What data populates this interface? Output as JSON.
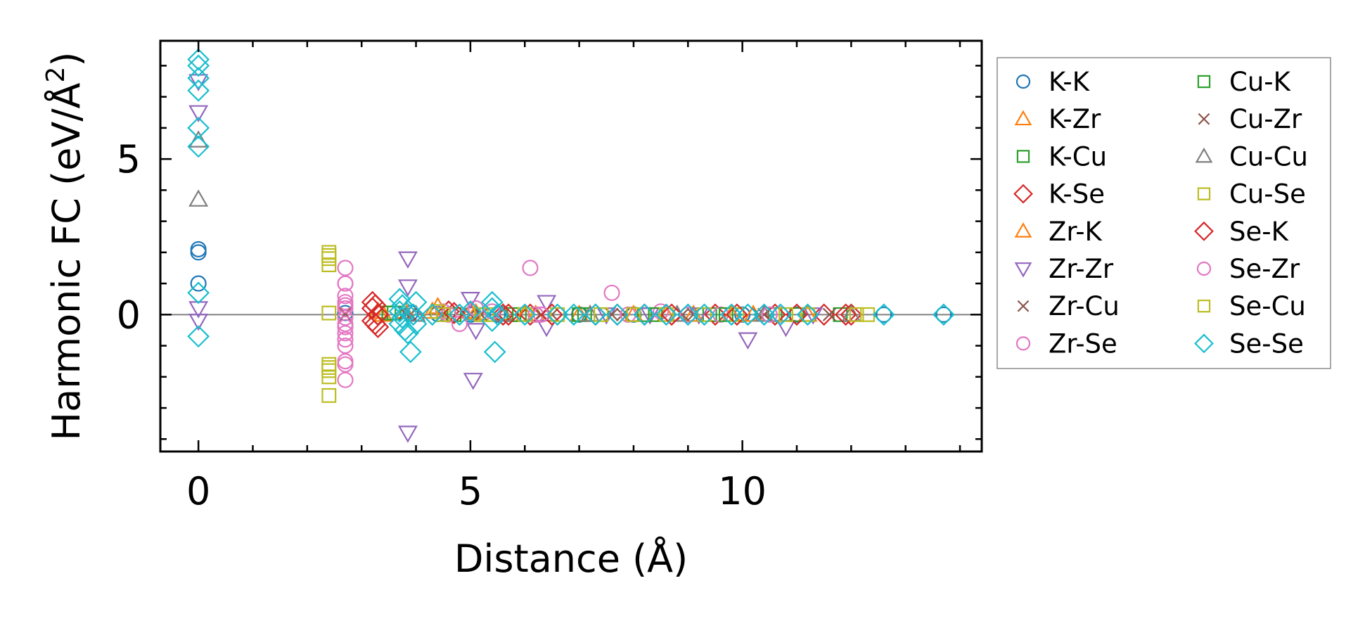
{
  "chart_data": {
    "type": "scatter",
    "title": "",
    "xlabel": "Distance (Å)",
    "ylabel_parts": [
      "Harmonic FC (eV/Å",
      "2",
      ")"
    ],
    "xlim": [
      -0.7,
      14.4
    ],
    "ylim": [
      -4.4,
      8.8
    ],
    "xticks": [
      0,
      5,
      10
    ],
    "xtick_labels": [
      "0",
      "5",
      "10"
    ],
    "yticks": [
      0,
      5
    ],
    "ytick_labels": [
      "0",
      "5"
    ],
    "x_minor_step": 1,
    "y_minor_step": 1,
    "zero_line": true,
    "grid": false,
    "legend_position": "outside-right",
    "legend_columns": 2,
    "series": [
      {
        "name": "K-K",
        "marker": "circle",
        "color": "#1f77b4",
        "points": [
          [
            0,
            2.1
          ],
          [
            0,
            2.0
          ],
          [
            0,
            1.0
          ],
          [
            2.7,
            0.05
          ],
          [
            3.9,
            0.05
          ],
          [
            4.4,
            0.02
          ],
          [
            5.0,
            0.0
          ],
          [
            5.5,
            0.0
          ],
          [
            6.2,
            0.0
          ],
          [
            7.0,
            0.0
          ],
          [
            8.0,
            0.0
          ],
          [
            9.0,
            0.0
          ],
          [
            10.0,
            0.0
          ],
          [
            11.0,
            0.0
          ],
          [
            12.6,
            0.0
          ],
          [
            13.7,
            0.0
          ]
        ]
      },
      {
        "name": "K-Zr",
        "marker": "triangle-up",
        "color": "#ff7f0e",
        "points": [
          [
            3.3,
            0.1
          ],
          [
            3.8,
            0.1
          ],
          [
            4.4,
            0.25
          ],
          [
            5.0,
            0.1
          ],
          [
            5.6,
            0.05
          ],
          [
            6.2,
            0.0
          ],
          [
            7.0,
            0.0
          ],
          [
            8.0,
            0.0
          ],
          [
            9.1,
            0.0
          ],
          [
            10.2,
            0.0
          ],
          [
            11.2,
            0.0
          ]
        ]
      },
      {
        "name": "K-Cu",
        "marker": "square",
        "color": "#2ca02c",
        "points": [
          [
            3.6,
            0.05
          ],
          [
            4.6,
            0.0
          ],
          [
            5.8,
            0.0
          ],
          [
            7.1,
            0.0
          ],
          [
            8.2,
            0.0
          ],
          [
            9.4,
            0.0
          ],
          [
            10.6,
            0.0
          ],
          [
            11.8,
            0.0
          ]
        ]
      },
      {
        "name": "K-Se",
        "marker": "diamond",
        "color": "#d62728",
        "points": [
          [
            3.2,
            0.4
          ],
          [
            3.2,
            0.2
          ],
          [
            3.3,
            0.0
          ],
          [
            3.2,
            -0.2
          ],
          [
            3.3,
            -0.4
          ],
          [
            4.6,
            0.1
          ],
          [
            5.6,
            0.0
          ],
          [
            6.1,
            0.0
          ],
          [
            7.3,
            0.0
          ],
          [
            8.2,
            0.0
          ],
          [
            9.5,
            0.0
          ],
          [
            10.6,
            0.0
          ],
          [
            11.5,
            0.0
          ],
          [
            12.0,
            0.0
          ]
        ]
      },
      {
        "name": "Zr-K",
        "marker": "triangle-up",
        "color": "#ff7f0e",
        "points": [
          [
            3.4,
            0.0
          ],
          [
            4.3,
            0.1
          ],
          [
            5.1,
            0.05
          ],
          [
            6.0,
            0.0
          ],
          [
            7.2,
            0.0
          ],
          [
            8.6,
            0.0
          ],
          [
            9.8,
            0.0
          ]
        ]
      },
      {
        "name": "Zr-Zr",
        "marker": "triangle-down",
        "color": "#9467bd",
        "points": [
          [
            0,
            7.5
          ],
          [
            0,
            6.5
          ],
          [
            0,
            0.2
          ],
          [
            0,
            -0.2
          ],
          [
            3.85,
            1.8
          ],
          [
            3.85,
            0.9
          ],
          [
            3.85,
            -3.8
          ],
          [
            5.0,
            0.5
          ],
          [
            5.05,
            -2.1
          ],
          [
            5.1,
            -0.5
          ],
          [
            6.4,
            0.4
          ],
          [
            6.4,
            -0.4
          ],
          [
            7.5,
            0.0
          ],
          [
            8.3,
            0.0
          ],
          [
            9.2,
            0.0
          ],
          [
            10.1,
            -0.8
          ],
          [
            10.8,
            -0.4
          ],
          [
            11.3,
            0.0
          ]
        ]
      },
      {
        "name": "Zr-Cu",
        "marker": "cross",
        "color": "#8c564b",
        "points": [
          [
            2.7,
            0.0
          ],
          [
            3.8,
            0.05
          ],
          [
            5.0,
            0.0
          ],
          [
            6.3,
            0.0
          ],
          [
            7.6,
            0.0
          ],
          [
            8.9,
            0.0
          ],
          [
            10.3,
            0.0
          ],
          [
            11.6,
            0.0
          ]
        ]
      },
      {
        "name": "Zr-Se",
        "marker": "circle",
        "color": "#e377c2",
        "points": [
          [
            2.7,
            1.5
          ],
          [
            2.7,
            1.0
          ],
          [
            2.7,
            0.6
          ],
          [
            2.7,
            0.4
          ],
          [
            2.7,
            0.2
          ],
          [
            2.7,
            -0.1
          ],
          [
            2.7,
            -0.4
          ],
          [
            2.7,
            -0.6
          ],
          [
            2.7,
            -1.0
          ],
          [
            2.7,
            -1.6
          ],
          [
            2.7,
            -2.1
          ],
          [
            4.5,
            0.1
          ],
          [
            4.8,
            -0.3
          ],
          [
            5.1,
            0.2
          ],
          [
            6.1,
            1.5
          ],
          [
            6.2,
            0.0
          ],
          [
            7.6,
            0.7
          ],
          [
            8.5,
            0.1
          ],
          [
            9.6,
            0.0
          ],
          [
            10.7,
            0.0
          ]
        ]
      },
      {
        "name": "Cu-K",
        "marker": "square",
        "color": "#2ca02c",
        "points": [
          [
            3.5,
            0.05
          ],
          [
            4.7,
            0.0
          ],
          [
            5.9,
            0.0
          ],
          [
            7.0,
            0.0
          ],
          [
            8.4,
            0.0
          ],
          [
            9.7,
            0.0
          ],
          [
            11.0,
            0.0
          ]
        ]
      },
      {
        "name": "Cu-Zr",
        "marker": "cross",
        "color": "#8c564b",
        "points": [
          [
            2.7,
            0.02
          ],
          [
            3.9,
            0.0
          ],
          [
            5.2,
            0.0
          ],
          [
            6.5,
            0.0
          ],
          [
            7.8,
            0.0
          ],
          [
            9.1,
            0.0
          ],
          [
            10.4,
            0.0
          ]
        ]
      },
      {
        "name": "Cu-Cu",
        "marker": "triangle-up",
        "color": "#7f7f7f",
        "points": [
          [
            0,
            5.6
          ],
          [
            0,
            3.7
          ],
          [
            4.0,
            0.0
          ],
          [
            5.6,
            0.0
          ],
          [
            7.2,
            0.0
          ],
          [
            8.8,
            0.0
          ],
          [
            10.4,
            0.0
          ],
          [
            12.0,
            0.0
          ]
        ]
      },
      {
        "name": "Cu-Se",
        "marker": "square",
        "color": "#bcbd22",
        "points": [
          [
            2.4,
            2.0
          ],
          [
            2.4,
            1.8
          ],
          [
            2.4,
            1.6
          ],
          [
            2.4,
            0.05
          ],
          [
            2.4,
            -1.6
          ],
          [
            2.4,
            -1.8
          ],
          [
            2.4,
            -2.0
          ],
          [
            2.4,
            -2.6
          ],
          [
            4.4,
            0.1
          ],
          [
            5.2,
            0.0
          ],
          [
            6.0,
            0.0
          ],
          [
            7.4,
            0.0
          ],
          [
            8.6,
            0.0
          ],
          [
            9.9,
            0.0
          ],
          [
            11.2,
            0.0
          ],
          [
            12.3,
            0.0
          ]
        ]
      },
      {
        "name": "Se-K",
        "marker": "diamond",
        "color": "#d62728",
        "points": [
          [
            3.25,
            0.3
          ],
          [
            3.3,
            0.0
          ],
          [
            3.25,
            -0.3
          ],
          [
            4.7,
            0.05
          ],
          [
            5.7,
            0.0
          ],
          [
            6.5,
            0.0
          ],
          [
            7.7,
            0.0
          ],
          [
            8.7,
            0.0
          ],
          [
            9.9,
            0.0
          ],
          [
            11.0,
            0.0
          ],
          [
            11.9,
            0.0
          ]
        ]
      },
      {
        "name": "Se-Zr",
        "marker": "circle",
        "color": "#e377c2",
        "points": [
          [
            2.7,
            1.0
          ],
          [
            2.7,
            0.3
          ],
          [
            2.7,
            -0.3
          ],
          [
            2.7,
            -0.8
          ],
          [
            2.7,
            -1.5
          ],
          [
            4.6,
            0.0
          ],
          [
            5.4,
            0.1
          ],
          [
            6.3,
            0.0
          ],
          [
            7.9,
            0.0
          ],
          [
            9.0,
            0.0
          ],
          [
            10.5,
            0.0
          ]
        ]
      },
      {
        "name": "Se-Cu",
        "marker": "square",
        "color": "#bcbd22",
        "points": [
          [
            2.4,
            1.9
          ],
          [
            2.4,
            -1.7
          ],
          [
            4.5,
            0.0
          ],
          [
            5.3,
            0.0
          ],
          [
            6.6,
            0.0
          ],
          [
            8.0,
            0.0
          ],
          [
            9.3,
            0.0
          ],
          [
            10.8,
            0.0
          ],
          [
            12.1,
            0.0
          ]
        ]
      },
      {
        "name": "Se-Se",
        "marker": "diamond",
        "color": "#17becf",
        "points": [
          [
            0,
            8.2
          ],
          [
            0,
            8.0
          ],
          [
            0,
            7.6
          ],
          [
            0,
            7.2
          ],
          [
            0,
            6.0
          ],
          [
            0,
            5.4
          ],
          [
            0,
            0.7
          ],
          [
            0,
            -0.7
          ],
          [
            3.7,
            0.5
          ],
          [
            3.75,
            0.3
          ],
          [
            3.7,
            0.1
          ],
          [
            3.75,
            -0.1
          ],
          [
            3.7,
            -0.3
          ],
          [
            3.8,
            -0.5
          ],
          [
            3.85,
            -0.6
          ],
          [
            3.9,
            -1.2
          ],
          [
            3.95,
            0.0
          ],
          [
            4.0,
            0.4
          ],
          [
            4.0,
            -0.3
          ],
          [
            4.3,
            0.0
          ],
          [
            4.8,
            0.0
          ],
          [
            5.0,
            0.1
          ],
          [
            5.4,
            0.4
          ],
          [
            5.4,
            0.2
          ],
          [
            5.4,
            -0.2
          ],
          [
            5.45,
            -1.2
          ],
          [
            5.5,
            0.0
          ],
          [
            6.0,
            0.0
          ],
          [
            6.6,
            0.0
          ],
          [
            6.9,
            0.0
          ],
          [
            7.3,
            0.0
          ],
          [
            7.7,
            0.0
          ],
          [
            8.2,
            0.0
          ],
          [
            8.6,
            0.0
          ],
          [
            9.0,
            0.0
          ],
          [
            9.3,
            0.0
          ],
          [
            9.8,
            0.0
          ],
          [
            10.1,
            0.0
          ],
          [
            10.4,
            0.0
          ],
          [
            10.7,
            0.0
          ],
          [
            11.2,
            0.0
          ],
          [
            12.6,
            0.0
          ],
          [
            13.7,
            0.0
          ]
        ]
      }
    ]
  }
}
